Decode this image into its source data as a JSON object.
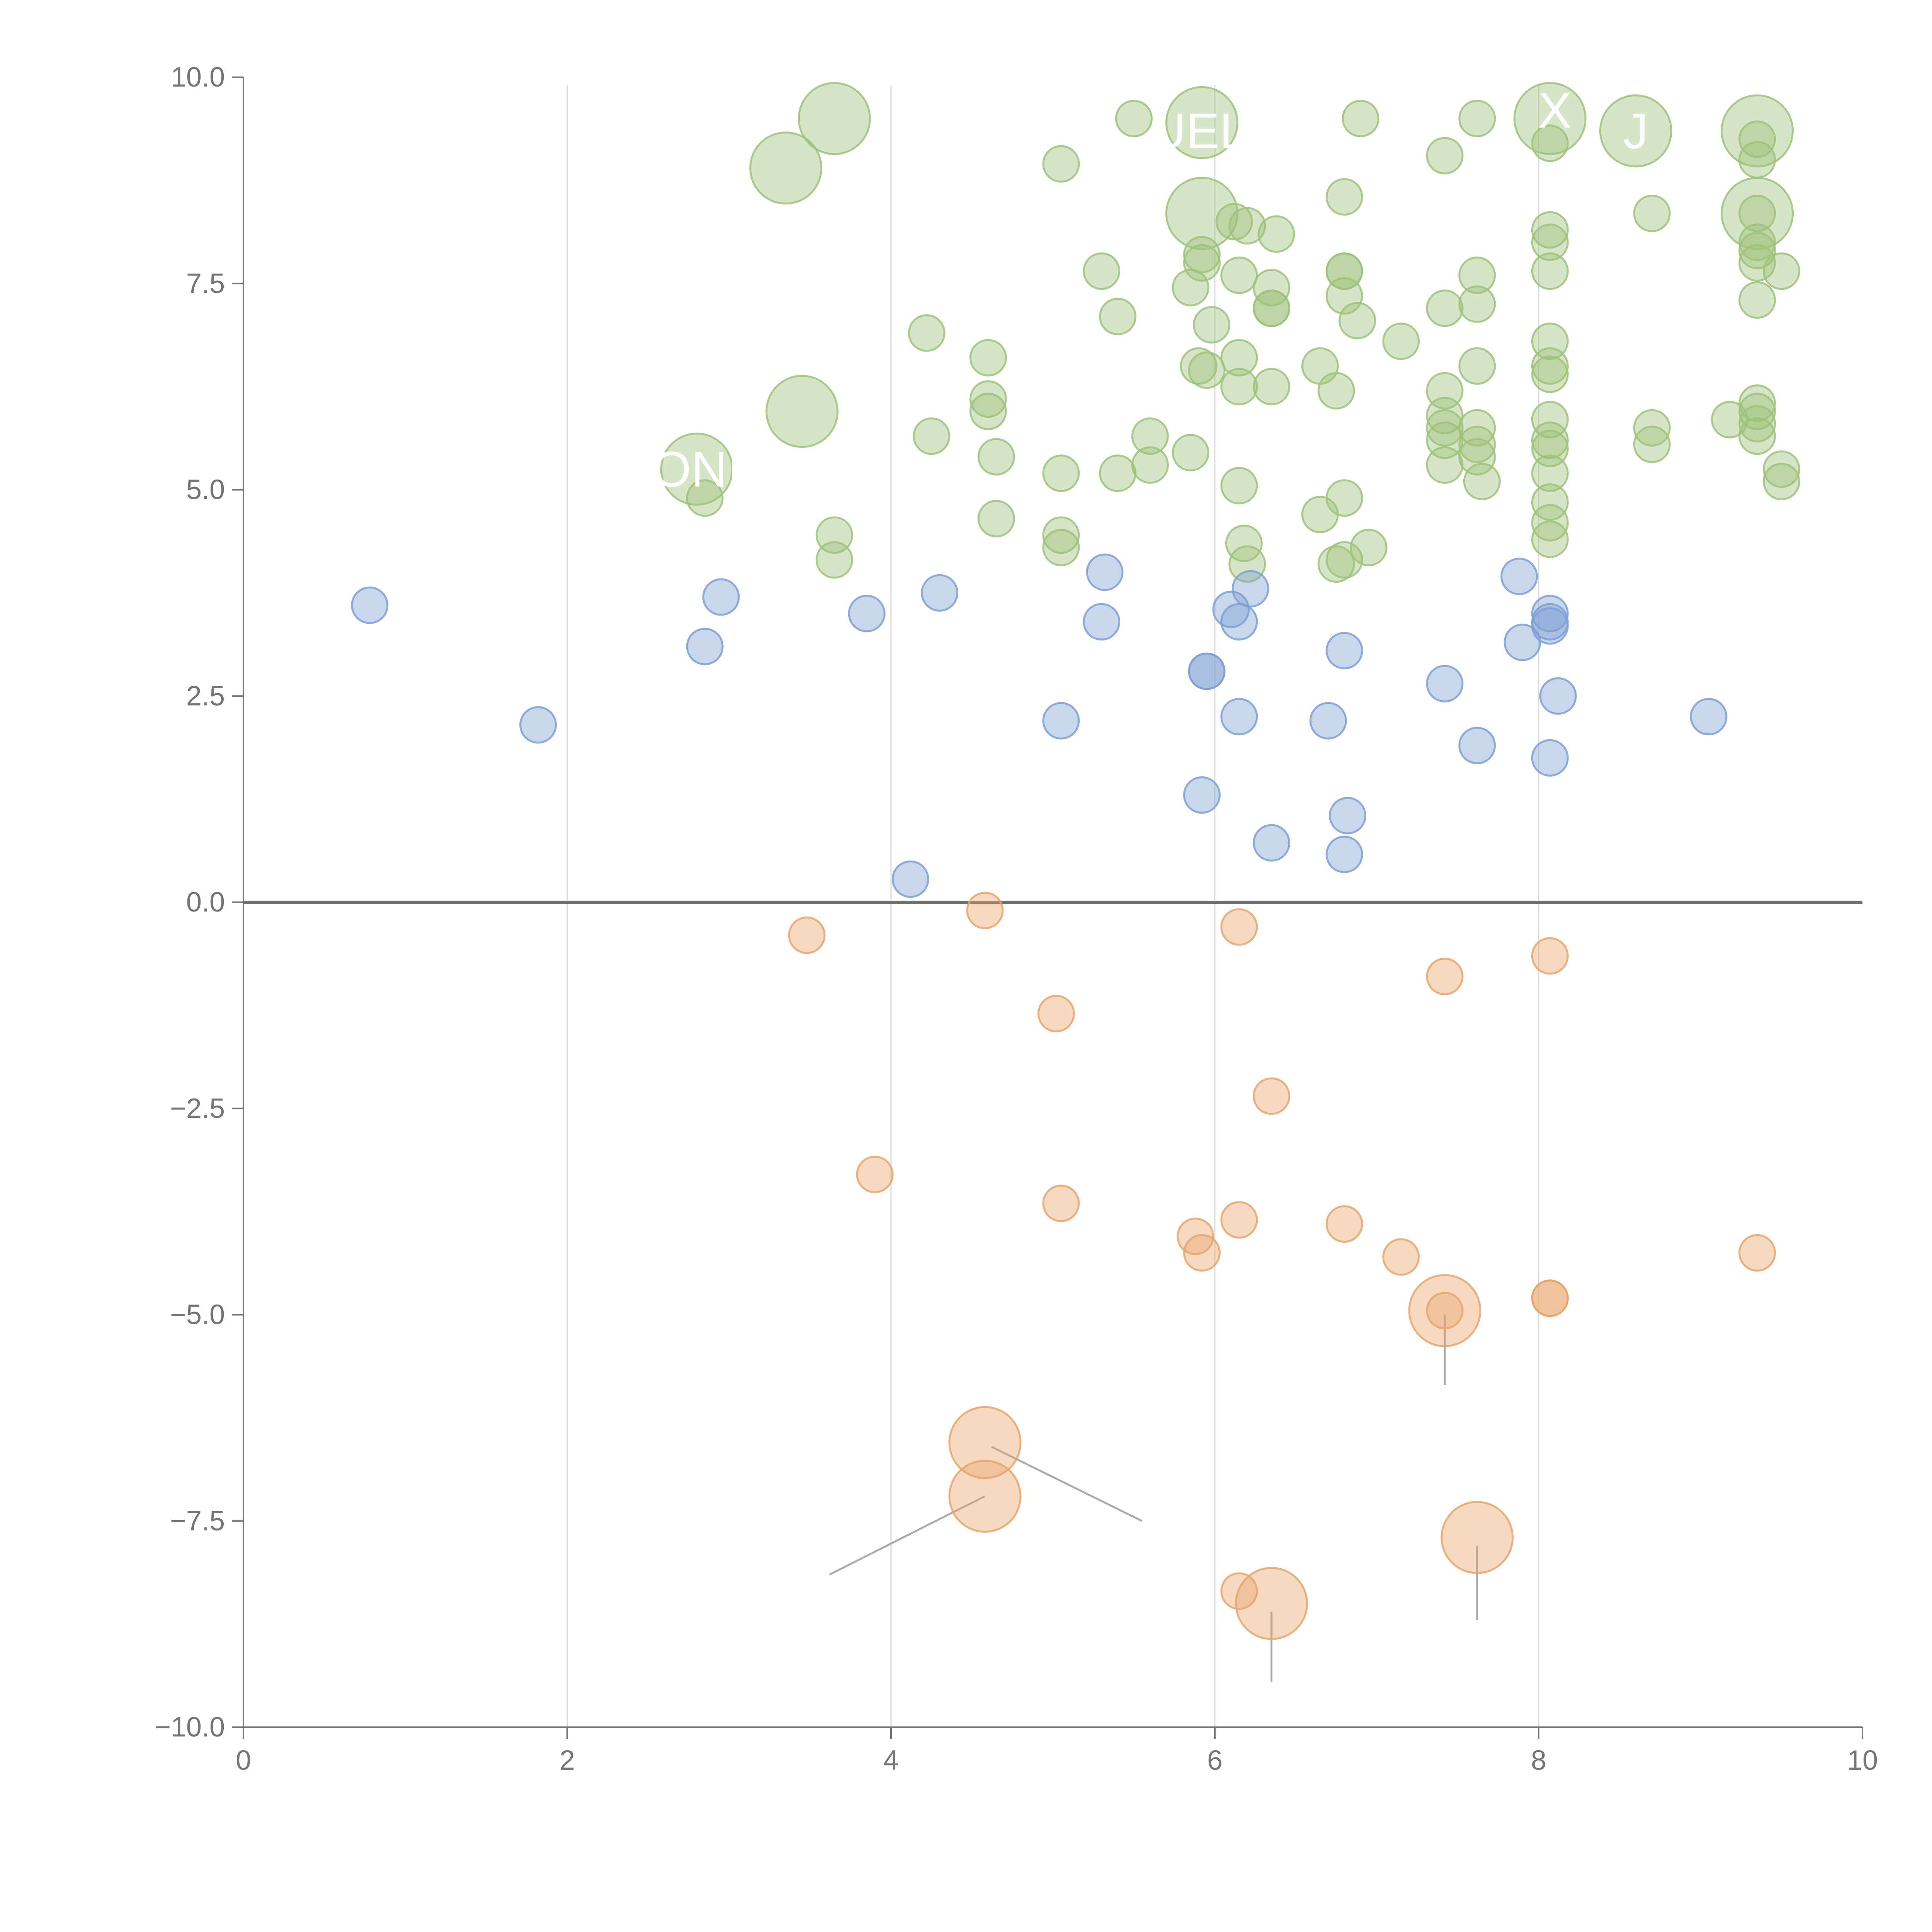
{
  "colors": {
    "positive_medium": "#9dc27a",
    "positive_low": "#7e9fd4",
    "negative": "#e8a46c",
    "axis": "#757575",
    "grid": "#d9d9d9",
    "zero_line": "#6f6f6f",
    "leader": "#aaaaaa"
  },
  "chart_data": {
    "type": "scatter",
    "title": "",
    "xlabel": "",
    "ylabel": "",
    "xlim": [
      0,
      10
    ],
    "ylim": [
      -10,
      10
    ],
    "x_ticks": [
      "0",
      "2",
      "4",
      "6",
      "8",
      "10"
    ],
    "y_ticks": [
      "10.0",
      "7.5",
      "5.0",
      "2.5",
      "0.0",
      "−2.5",
      "−5.0",
      "−7.5",
      "−10.0"
    ],
    "grid": "vertical lines at x = 2, 4, 6, 8",
    "legend": "none",
    "point_labels": [
      {
        "text": "ONI",
        "x": 2.8,
        "y": 5.25
      },
      {
        "text": "UEL",
        "x": 5.9,
        "y": 9.35
      },
      {
        "text": "X",
        "x": 8.1,
        "y": 9.6
      },
      {
        "text": "J",
        "x": 8.6,
        "y": 9.35
      }
    ],
    "series": [
      {
        "group": "green",
        "points": [
          [
            3.35,
            8.9,
            2
          ],
          [
            3.65,
            9.5,
            2
          ],
          [
            3.45,
            5.95,
            2
          ],
          [
            2.8,
            5.25,
            2
          ],
          [
            5.92,
            9.45,
            2
          ],
          [
            5.92,
            8.35,
            2
          ],
          [
            8.07,
            9.5,
            2
          ],
          [
            8.6,
            9.35,
            2
          ],
          [
            9.35,
            9.35,
            2
          ],
          [
            9.35,
            8.35,
            2
          ],
          [
            2.85,
            4.9,
            1
          ],
          [
            3.65,
            4.45,
            1
          ],
          [
            3.65,
            4.15,
            1
          ],
          [
            4.22,
            6.9,
            1
          ],
          [
            4.25,
            5.65,
            1
          ],
          [
            4.6,
            6.6,
            1
          ],
          [
            4.6,
            6.1,
            1
          ],
          [
            4.6,
            5.95,
            1
          ],
          [
            4.65,
            5.4,
            1
          ],
          [
            4.65,
            4.65,
            1
          ],
          [
            5.05,
            8.95,
            1
          ],
          [
            5.05,
            5.2,
            1
          ],
          [
            5.05,
            4.45,
            1
          ],
          [
            5.05,
            4.3,
            1
          ],
          [
            5.3,
            7.65,
            1
          ],
          [
            5.4,
            7.1,
            1
          ],
          [
            5.4,
            5.2,
            1
          ],
          [
            5.5,
            9.5,
            1
          ],
          [
            5.6,
            5.65,
            1
          ],
          [
            5.6,
            5.3,
            1
          ],
          [
            5.85,
            7.45,
            1
          ],
          [
            5.85,
            5.45,
            1
          ],
          [
            5.9,
            6.5,
            1
          ],
          [
            5.92,
            7.85,
            1
          ],
          [
            5.92,
            7.75,
            1
          ],
          [
            5.95,
            6.45,
            1
          ],
          [
            5.98,
            7.0,
            1
          ],
          [
            6.12,
            8.25,
            1
          ],
          [
            6.15,
            7.6,
            1
          ],
          [
            6.15,
            6.6,
            1
          ],
          [
            6.15,
            6.25,
            1
          ],
          [
            6.15,
            5.05,
            1
          ],
          [
            6.18,
            4.35,
            1
          ],
          [
            6.2,
            4.1,
            1
          ],
          [
            6.2,
            8.2,
            1
          ],
          [
            6.38,
            8.1,
            1
          ],
          [
            6.35,
            7.45,
            1
          ],
          [
            6.35,
            7.2,
            1
          ],
          [
            6.35,
            7.2,
            1
          ],
          [
            6.35,
            6.25,
            1
          ],
          [
            6.65,
            6.5,
            1
          ],
          [
            6.65,
            4.7,
            1
          ],
          [
            6.75,
            4.1,
            1
          ],
          [
            6.75,
            6.2,
            1
          ],
          [
            6.8,
            8.55,
            1
          ],
          [
            6.8,
            7.65,
            1
          ],
          [
            6.8,
            7.65,
            1
          ],
          [
            6.8,
            7.35,
            1
          ],
          [
            6.8,
            4.9,
            1
          ],
          [
            6.8,
            4.15,
            1
          ],
          [
            6.88,
            7.05,
            1
          ],
          [
            6.9,
            9.5,
            1
          ],
          [
            6.95,
            4.3,
            1
          ],
          [
            7.15,
            6.8,
            1
          ],
          [
            7.42,
            9.05,
            1
          ],
          [
            7.42,
            7.2,
            1
          ],
          [
            7.42,
            6.2,
            1
          ],
          [
            7.42,
            5.9,
            1
          ],
          [
            7.42,
            5.75,
            1
          ],
          [
            7.42,
            5.6,
            1
          ],
          [
            7.42,
            5.3,
            1
          ],
          [
            7.62,
            9.5,
            1
          ],
          [
            7.62,
            7.6,
            1
          ],
          [
            7.62,
            7.25,
            1
          ],
          [
            7.62,
            6.5,
            1
          ],
          [
            7.62,
            5.75,
            1
          ],
          [
            7.62,
            5.55,
            1
          ],
          [
            7.62,
            5.4,
            1
          ],
          [
            7.65,
            5.1,
            1
          ],
          [
            8.07,
            9.2,
            1
          ],
          [
            8.07,
            8.15,
            1
          ],
          [
            8.07,
            8.0,
            1
          ],
          [
            8.07,
            7.65,
            1
          ],
          [
            8.07,
            6.8,
            1
          ],
          [
            8.07,
            6.5,
            1
          ],
          [
            8.07,
            6.4,
            1
          ],
          [
            8.07,
            5.85,
            1
          ],
          [
            8.07,
            5.6,
            1
          ],
          [
            8.07,
            5.5,
            1
          ],
          [
            8.07,
            5.2,
            1
          ],
          [
            8.07,
            4.85,
            1
          ],
          [
            8.07,
            4.6,
            1
          ],
          [
            8.07,
            4.4,
            1
          ],
          [
            8.7,
            8.35,
            1
          ],
          [
            8.7,
            5.75,
            1
          ],
          [
            8.7,
            5.55,
            1
          ],
          [
            9.18,
            5.85,
            1
          ],
          [
            9.35,
            9.25,
            1
          ],
          [
            9.35,
            9.0,
            1
          ],
          [
            9.35,
            8.35,
            1
          ],
          [
            9.35,
            8.0,
            1
          ],
          [
            9.35,
            7.9,
            1
          ],
          [
            9.35,
            7.75,
            1
          ],
          [
            9.35,
            7.3,
            1
          ],
          [
            9.35,
            6.05,
            1
          ],
          [
            9.35,
            5.95,
            1
          ],
          [
            9.35,
            5.8,
            1
          ],
          [
            9.35,
            5.65,
            1
          ],
          [
            9.5,
            7.65,
            1
          ],
          [
            9.5,
            5.25,
            1
          ],
          [
            9.5,
            5.1,
            1
          ]
        ]
      },
      {
        "group": "blue",
        "points": [
          [
            0.78,
            3.6,
            1
          ],
          [
            1.82,
            2.15,
            1
          ],
          [
            2.85,
            3.1,
            1
          ],
          [
            2.95,
            3.7,
            1
          ],
          [
            3.85,
            3.5,
            1
          ],
          [
            4.12,
            0.28,
            1
          ],
          [
            4.3,
            3.75,
            1
          ],
          [
            5.05,
            2.2,
            1
          ],
          [
            5.3,
            3.4,
            1
          ],
          [
            5.32,
            4.0,
            1
          ],
          [
            5.92,
            1.3,
            1
          ],
          [
            5.95,
            2.8,
            1
          ],
          [
            5.95,
            2.8,
            1
          ],
          [
            6.1,
            3.55,
            1
          ],
          [
            6.15,
            3.4,
            1
          ],
          [
            6.15,
            2.25,
            1
          ],
          [
            6.22,
            3.8,
            1
          ],
          [
            6.35,
            0.72,
            1
          ],
          [
            6.7,
            2.2,
            1
          ],
          [
            6.8,
            3.05,
            1
          ],
          [
            6.8,
            0.58,
            1
          ],
          [
            6.82,
            1.05,
            1
          ],
          [
            7.42,
            2.65,
            1
          ],
          [
            7.62,
            1.9,
            1
          ],
          [
            7.88,
            3.95,
            1
          ],
          [
            7.9,
            3.15,
            1
          ],
          [
            8.07,
            3.5,
            1
          ],
          [
            8.07,
            3.4,
            1
          ],
          [
            8.07,
            3.35,
            1
          ],
          [
            8.07,
            1.75,
            1
          ],
          [
            8.12,
            2.5,
            1
          ],
          [
            9.05,
            2.25,
            1
          ]
        ]
      },
      {
        "group": "orange",
        "points": [
          [
            3.48,
            -0.4,
            1
          ],
          [
            3.9,
            -3.3,
            1
          ],
          [
            4.58,
            -0.1,
            1
          ],
          [
            5.02,
            -1.35,
            1
          ],
          [
            5.05,
            -3.65,
            1
          ],
          [
            5.88,
            -4.05,
            1
          ],
          [
            5.92,
            -4.25,
            1
          ],
          [
            6.15,
            -0.3,
            1
          ],
          [
            6.15,
            -3.85,
            1
          ],
          [
            6.15,
            -8.35,
            1
          ],
          [
            6.35,
            -2.35,
            1
          ],
          [
            6.8,
            -3.9,
            1
          ],
          [
            7.15,
            -4.3,
            1
          ],
          [
            7.42,
            -0.9,
            1
          ],
          [
            7.42,
            -4.95,
            1
          ],
          [
            8.07,
            -0.65,
            1
          ],
          [
            8.07,
            -4.8,
            1
          ],
          [
            8.07,
            -4.8,
            1
          ],
          [
            9.35,
            -4.25,
            1
          ],
          [
            4.58,
            -6.55,
            2
          ],
          [
            4.58,
            -7.2,
            2
          ],
          [
            6.35,
            -8.5,
            2
          ],
          [
            7.42,
            -4.95,
            2
          ],
          [
            7.62,
            -7.7,
            2
          ]
        ]
      }
    ]
  }
}
